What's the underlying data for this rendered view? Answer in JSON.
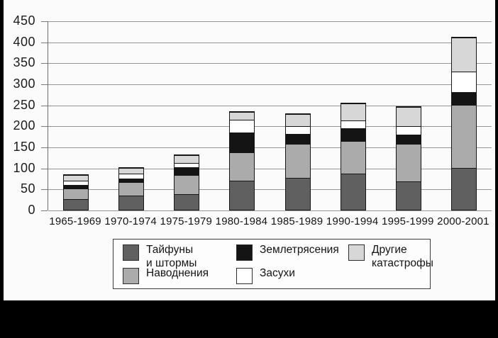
{
  "colors": {
    "page_background": "#000000",
    "panel_background": "#fbfbfb",
    "gridline": "#979797",
    "text": "#141414"
  },
  "chart_data": {
    "type": "bar",
    "stacked": true,
    "title": "",
    "xlabel": "",
    "ylabel": "",
    "categories": [
      "1965-1969",
      "1970-1974",
      "1975-1979",
      "1980-1984",
      "1985-1989",
      "1990-1994",
      "1995-1999",
      "2000-2001"
    ],
    "series": [
      {
        "name": "Тайфуны и штормы",
        "color": "#606060",
        "values": [
          25,
          33,
          38,
          69,
          76,
          86,
          67,
          99
        ]
      },
      {
        "name": "Наводнения",
        "color": "#ababab",
        "values": [
          25,
          33,
          45,
          67,
          80,
          77,
          89,
          151
        ]
      },
      {
        "name": "Землетрясения",
        "color": "#141414",
        "values": [
          10,
          8,
          19,
          47,
          25,
          31,
          23,
          30
        ]
      },
      {
        "name": "Засухи",
        "color": "#ffffff",
        "values": [
          10,
          12,
          10,
          31,
          18,
          18,
          20,
          48
        ]
      },
      {
        "name": "Другие катастрофы",
        "color": "#d7d7d7",
        "values": [
          13,
          14,
          18,
          19,
          28,
          41,
          46,
          82
        ]
      }
    ],
    "totals": [
      83,
      100,
      130,
      233,
      227,
      253,
      245,
      410
    ],
    "ylim": [
      0,
      450
    ],
    "ytick_step": 50,
    "yticks": [
      "0",
      "50",
      "100",
      "150",
      "200",
      "250",
      "300",
      "350",
      "400",
      "450"
    ],
    "grid": "horizontal",
    "legend_position": "bottom-box"
  },
  "legend": {
    "items": [
      {
        "label": "Тайфуны\nи штормы"
      },
      {
        "label": "Наводнения"
      },
      {
        "label": "Землетрясения"
      },
      {
        "label": "Засухи"
      },
      {
        "label": "Другие\nкатастрофы"
      }
    ]
  }
}
